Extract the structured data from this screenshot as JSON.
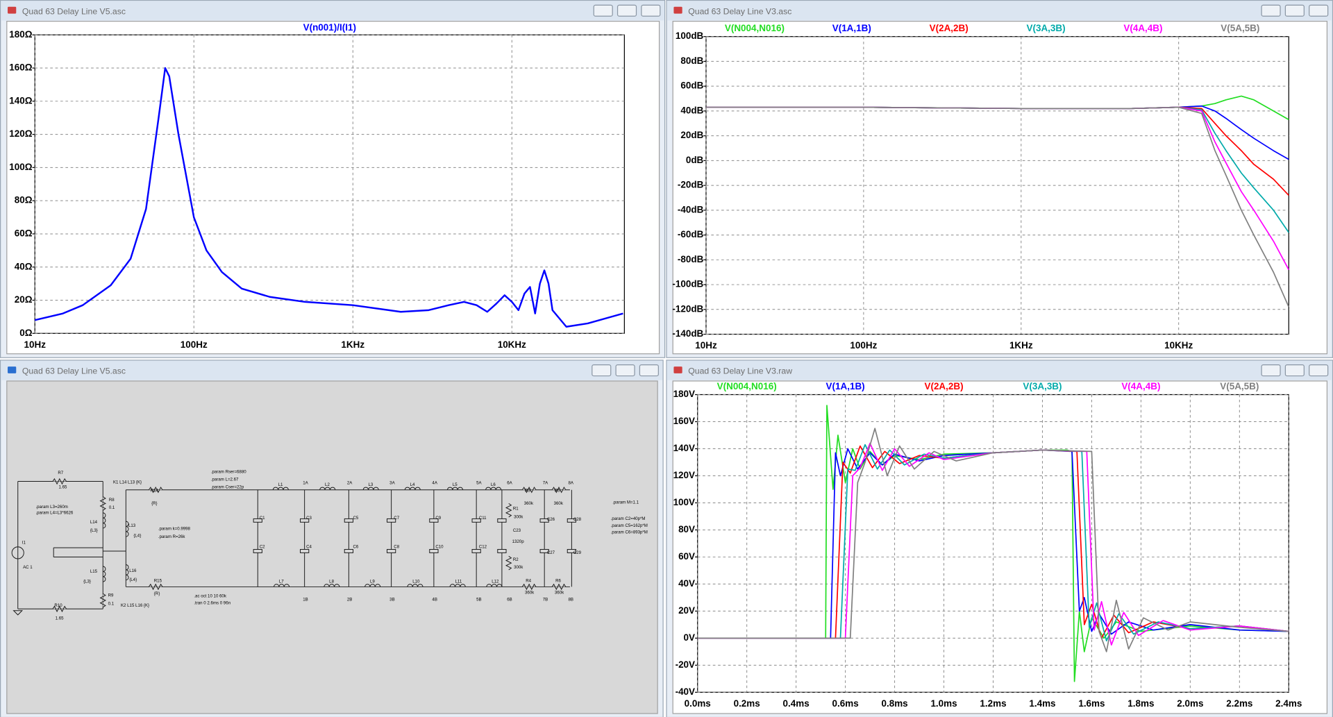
{
  "windows": [
    {
      "title": "Quad 63 Delay Line V5.asc"
    },
    {
      "title": "Quad 63 Delay Line V3.asc"
    },
    {
      "title": "Quad 63 Delay Line V5.asc"
    },
    {
      "title": "Quad 63 Delay Line V3.raw"
    }
  ],
  "chart_data": [
    {
      "type": "line",
      "title": "V(n001)/I(I1)",
      "xscale": "log",
      "grid": true,
      "color": "#0000ff",
      "x": [
        10,
        15,
        20,
        30,
        40,
        50,
        60,
        66,
        70,
        80,
        100,
        120,
        150,
        200,
        300,
        500,
        1000,
        2000,
        3000,
        4000,
        5000,
        6000,
        7000,
        8000,
        9000,
        10000,
        11000,
        12000,
        13000,
        14000,
        15000,
        16000,
        17000,
        18000,
        22000,
        30000,
        50000
      ],
      "values": [
        8,
        12,
        17,
        29,
        45,
        75,
        130,
        160,
        155,
        120,
        70,
        50,
        37,
        27,
        22,
        19,
        17,
        13,
        14,
        17,
        19,
        17,
        13,
        18,
        23,
        19,
        14,
        24,
        28,
        12,
        30,
        38,
        30,
        14,
        4,
        6,
        12
      ],
      "xlim": [
        10,
        51000
      ],
      "xticks": [
        {
          "value": 10,
          "label": "10Hz"
        },
        {
          "value": 100,
          "label": "100Hz"
        },
        {
          "value": 1000,
          "label": "1KHz"
        },
        {
          "value": 10000,
          "label": "10KHz"
        }
      ],
      "ylim": [
        0,
        180
      ],
      "yticks": [
        {
          "value": 0,
          "label": "0Ω"
        },
        {
          "value": 20,
          "label": "20Ω"
        },
        {
          "value": 40,
          "label": "40Ω"
        },
        {
          "value": 60,
          "label": "60Ω"
        },
        {
          "value": 80,
          "label": "80Ω"
        },
        {
          "value": 100,
          "label": "100Ω"
        },
        {
          "value": 120,
          "label": "120Ω"
        },
        {
          "value": 140,
          "label": "140Ω"
        },
        {
          "value": 160,
          "label": "160Ω"
        },
        {
          "value": 180,
          "label": "180Ω"
        }
      ]
    },
    {
      "type": "line",
      "xscale": "log",
      "grid": true,
      "x": [
        10,
        100,
        1000,
        5000,
        10000,
        14000,
        17000,
        20000,
        25000,
        30000,
        40000,
        50000
      ],
      "series": [
        {
          "name": "V(N004,N016)",
          "color": "#22dd22",
          "values": [
            43,
            43,
            42,
            42,
            43,
            44,
            46,
            49,
            52,
            49,
            40,
            33
          ]
        },
        {
          "name": "V(1A,1B)",
          "color": "#0000ff",
          "values": [
            43,
            43,
            42,
            42,
            43,
            44,
            40,
            34,
            25,
            18,
            8,
            1
          ]
        },
        {
          "name": "V(2A,2B)",
          "color": "#ff0000",
          "values": [
            43,
            43,
            42,
            42,
            43,
            42,
            30,
            20,
            8,
            -3,
            -15,
            -28
          ]
        },
        {
          "name": "V(3A,3B)",
          "color": "#00aaaa",
          "values": [
            43,
            43,
            42,
            42,
            43,
            41,
            22,
            8,
            -10,
            -22,
            -40,
            -58
          ]
        },
        {
          "name": "V(4A,4B)",
          "color": "#ff00ff",
          "values": [
            43,
            43,
            42,
            42,
            43,
            40,
            15,
            -2,
            -25,
            -40,
            -65,
            -88
          ]
        },
        {
          "name": "V(5A,5B)",
          "color": "#808080",
          "values": [
            43,
            43,
            42,
            42,
            43,
            38,
            8,
            -12,
            -40,
            -60,
            -90,
            -118
          ]
        }
      ],
      "xlim": [
        10,
        50000
      ],
      "xticks": [
        {
          "value": 10,
          "label": "10Hz"
        },
        {
          "value": 100,
          "label": "100Hz"
        },
        {
          "value": 1000,
          "label": "1KHz"
        },
        {
          "value": 10000,
          "label": "10KHz"
        }
      ],
      "ylim": [
        -140,
        100
      ],
      "yticks": [
        {
          "value": -140,
          "label": "-140dB"
        },
        {
          "value": -120,
          "label": "-120dB"
        },
        {
          "value": -100,
          "label": "-100dB"
        },
        {
          "value": -80,
          "label": "-80dB"
        },
        {
          "value": -60,
          "label": "-60dB"
        },
        {
          "value": -40,
          "label": "-40dB"
        },
        {
          "value": -20,
          "label": "-20dB"
        },
        {
          "value": 0,
          "label": "0dB"
        },
        {
          "value": 20,
          "label": "20dB"
        },
        {
          "value": 40,
          "label": "40dB"
        },
        {
          "value": 60,
          "label": "60dB"
        },
        {
          "value": 80,
          "label": "80dB"
        },
        {
          "value": 100,
          "label": "100dB"
        }
      ]
    },
    {
      "type": "line",
      "grid": true,
      "series": [
        {
          "name": "V(N004,N016)",
          "color": "#22dd22",
          "x": [
            0,
            0.52,
            0.525,
            0.55,
            0.57,
            0.6,
            0.63,
            0.66,
            0.7,
            0.75,
            0.8,
            0.9,
            1.0,
            1.2,
            1.4,
            1.5,
            1.52,
            1.53,
            1.55,
            1.57,
            1.6,
            1.65,
            1.7,
            1.8,
            2.0,
            2.2,
            2.4
          ],
          "values": [
            0,
            0,
            172,
            110,
            150,
            115,
            140,
            125,
            138,
            128,
            135,
            132,
            136,
            137,
            139,
            139,
            138,
            -32,
            20,
            -10,
            15,
            0,
            12,
            5,
            9,
            6,
            5
          ]
        },
        {
          "name": "V(1A,1B)",
          "color": "#0000ff",
          "x": [
            0,
            0.54,
            0.56,
            0.58,
            0.61,
            0.65,
            0.7,
            0.75,
            0.8,
            0.9,
            1.0,
            1.2,
            1.4,
            1.52,
            1.55,
            1.57,
            1.6,
            1.63,
            1.68,
            1.75,
            1.85,
            2.0,
            2.2,
            2.4
          ],
          "values": [
            0,
            0,
            137,
            120,
            140,
            125,
            137,
            128,
            136,
            131,
            135,
            137,
            139,
            138,
            20,
            30,
            5,
            18,
            3,
            12,
            6,
            10,
            6,
            5
          ]
        },
        {
          "name": "V(2A,2B)",
          "color": "#ff0000",
          "x": [
            0,
            0.56,
            0.59,
            0.62,
            0.66,
            0.71,
            0.76,
            0.82,
            0.9,
            1.0,
            1.2,
            1.4,
            1.54,
            1.57,
            1.6,
            1.64,
            1.69,
            1.75,
            1.85,
            2.0,
            2.2,
            2.4
          ],
          "values": [
            0,
            0,
            130,
            122,
            142,
            126,
            138,
            129,
            135,
            133,
            137,
            139,
            138,
            10,
            25,
            0,
            17,
            4,
            12,
            7,
            9,
            5
          ]
        },
        {
          "name": "V(3A,3B)",
          "color": "#00aaaa",
          "x": [
            0,
            0.58,
            0.61,
            0.64,
            0.68,
            0.73,
            0.78,
            0.84,
            0.92,
            1.0,
            1.2,
            1.4,
            1.56,
            1.59,
            1.62,
            1.66,
            1.71,
            1.77,
            1.87,
            2.0,
            2.2,
            2.4
          ],
          "values": [
            0,
            0,
            125,
            124,
            143,
            125,
            139,
            128,
            136,
            133,
            137,
            139,
            138,
            8,
            26,
            -2,
            18,
            3,
            12,
            7,
            9,
            5
          ]
        },
        {
          "name": "V(4A,4B)",
          "color": "#ff00ff",
          "x": [
            0,
            0.6,
            0.63,
            0.66,
            0.7,
            0.75,
            0.8,
            0.86,
            0.94,
            1.0,
            1.2,
            1.4,
            1.58,
            1.61,
            1.64,
            1.68,
            1.73,
            1.79,
            1.89,
            2.0,
            2.2,
            2.4
          ],
          "values": [
            0,
            0,
            120,
            126,
            144,
            124,
            140,
            127,
            137,
            132,
            137,
            139,
            138,
            6,
            27,
            -5,
            19,
            2,
            13,
            6,
            9,
            5
          ]
        },
        {
          "name": "V(5A,5B)",
          "color": "#808080",
          "x": [
            0,
            0.62,
            0.65,
            0.68,
            0.72,
            0.77,
            0.82,
            0.88,
            0.96,
            1.05,
            1.2,
            1.4,
            1.6,
            1.63,
            1.66,
            1.7,
            1.75,
            1.81,
            1.91,
            2.0,
            2.2,
            2.4
          ],
          "values": [
            0,
            0,
            115,
            130,
            155,
            120,
            142,
            125,
            138,
            131,
            137,
            139,
            138,
            5,
            -10,
            28,
            -8,
            15,
            6,
            12,
            8,
            5
          ]
        }
      ],
      "xlim": [
        0,
        2.4
      ],
      "xticks": [
        {
          "value": 0,
          "label": "0.0ms"
        },
        {
          "value": 0.2,
          "label": "0.2ms"
        },
        {
          "value": 0.4,
          "label": "0.4ms"
        },
        {
          "value": 0.6,
          "label": "0.6ms"
        },
        {
          "value": 0.8,
          "label": "0.8ms"
        },
        {
          "value": 1.0,
          "label": "1.0ms"
        },
        {
          "value": 1.2,
          "label": "1.2ms"
        },
        {
          "value": 1.4,
          "label": "1.4ms"
        },
        {
          "value": 1.6,
          "label": "1.6ms"
        },
        {
          "value": 1.8,
          "label": "1.8ms"
        },
        {
          "value": 2.0,
          "label": "2.0ms"
        },
        {
          "value": 2.2,
          "label": "2.2ms"
        },
        {
          "value": 2.4,
          "label": "2.4ms"
        }
      ],
      "ylim": [
        -40,
        180
      ],
      "yticks": [
        {
          "value": -40,
          "label": "-40V"
        },
        {
          "value": -20,
          "label": "-20V"
        },
        {
          "value": 0,
          "label": "0V"
        },
        {
          "value": 20,
          "label": "20V"
        },
        {
          "value": 40,
          "label": "40V"
        },
        {
          "value": 60,
          "label": "60V"
        },
        {
          "value": 80,
          "label": "80V"
        },
        {
          "value": 100,
          "label": "100V"
        },
        {
          "value": 120,
          "label": "120V"
        },
        {
          "value": 140,
          "label": "140V"
        },
        {
          "value": 160,
          "label": "160V"
        },
        {
          "value": 180,
          "label": "180V"
        }
      ]
    }
  ],
  "schematic": {
    "labels": [
      "R7",
      "1.65",
      "K1 L14 L13 {K}",
      "R8",
      "0.1",
      ".param L3=260m",
      ".param L4=L3*6626",
      "L14",
      "{L3}",
      "L13",
      "{L4}",
      "R14",
      "{R}",
      ".param Rser=6880",
      ".param L=2.67",
      ".param Cser=22p",
      ".param k=0.9998",
      ".param R=26k",
      "I1",
      "AC 1",
      "L15",
      "{L3}",
      "L16",
      "{L4}",
      "R9",
      "0.1",
      "R15",
      "{R}",
      "R10",
      "1.65",
      "K2 L15 L16 {K}",
      ".ac oct 10 10 60k",
      ".tran 0 2.6ms 0 96n",
      ".param M=1.1",
      ".param C2=40p*M",
      ".param C5=162p*M",
      ".param C6=893p*M",
      "L1",
      "L2",
      "L3",
      "L4",
      "L5",
      "L6",
      "L7",
      "L8",
      "L9",
      "L10",
      "L11",
      "L12",
      "C1",
      "C2",
      "C3",
      "C4",
      "C5",
      "C6",
      "C7",
      "C8",
      "C9",
      "C10",
      "C11",
      "C12",
      "R1",
      "300k",
      "R2",
      "300k",
      "C23",
      "1320p",
      "R3",
      "360k",
      "R5",
      "360k",
      "R4",
      "360k",
      "R6",
      "360k",
      "C26",
      "C27",
      "C28",
      "C29",
      "1A",
      "2A",
      "3A",
      "4A",
      "5A",
      "6A",
      "7A",
      "8A",
      "1B",
      "2B",
      "3B",
      "4B",
      "5B",
      "6B",
      "7B",
      "8B"
    ]
  }
}
